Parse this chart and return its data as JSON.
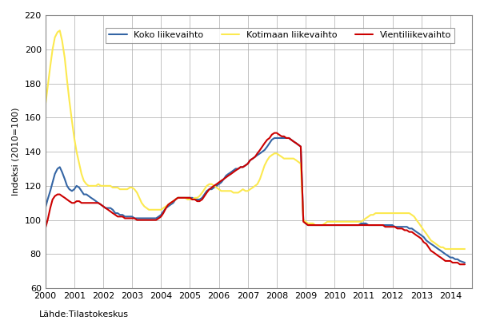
{
  "title": "",
  "ylabel": "Indeksi (2010=100)",
  "source_text": "Lähde:Tilastokeskus",
  "ylim": [
    60,
    220
  ],
  "yticks": [
    60,
    80,
    100,
    120,
    140,
    160,
    180,
    200,
    220
  ],
  "xlim_start": 2000.0,
  "xlim_end": 2014.75,
  "xtick_labels": [
    "2000",
    "2001",
    "2002",
    "2003",
    "2004",
    "2005",
    "2006",
    "2007",
    "2008",
    "2009",
    "2010",
    "2011",
    "2012",
    "2013",
    "2014"
  ],
  "line_koko": {
    "color": "#3465a4",
    "label": "Koko liikevaihto",
    "linewidth": 1.5
  },
  "line_kotimaan": {
    "color": "#fce94f",
    "label": "Kotimaan liikevaihto",
    "linewidth": 1.5
  },
  "line_vienti": {
    "color": "#cc0000",
    "label": "Vientiliikevaihto",
    "linewidth": 1.5
  },
  "koko_x": [
    2000.0,
    2000.08,
    2000.17,
    2000.25,
    2000.33,
    2000.42,
    2000.5,
    2000.58,
    2000.67,
    2000.75,
    2000.83,
    2000.92,
    2001.0,
    2001.08,
    2001.17,
    2001.25,
    2001.33,
    2001.42,
    2001.5,
    2001.58,
    2001.67,
    2001.75,
    2001.83,
    2001.92,
    2002.0,
    2002.08,
    2002.17,
    2002.25,
    2002.33,
    2002.42,
    2002.5,
    2002.58,
    2002.67,
    2002.75,
    2002.83,
    2002.92,
    2003.0,
    2003.08,
    2003.17,
    2003.25,
    2003.33,
    2003.42,
    2003.5,
    2003.58,
    2003.67,
    2003.75,
    2003.83,
    2003.92,
    2004.0,
    2004.08,
    2004.17,
    2004.25,
    2004.33,
    2004.42,
    2004.5,
    2004.58,
    2004.67,
    2004.75,
    2004.83,
    2004.92,
    2005.0,
    2005.08,
    2005.17,
    2005.25,
    2005.33,
    2005.42,
    2005.5,
    2005.58,
    2005.67,
    2005.75,
    2005.83,
    2005.92,
    2006.0,
    2006.08,
    2006.17,
    2006.25,
    2006.33,
    2006.42,
    2006.5,
    2006.58,
    2006.67,
    2006.75,
    2006.83,
    2006.92,
    2007.0,
    2007.08,
    2007.17,
    2007.25,
    2007.33,
    2007.42,
    2007.5,
    2007.58,
    2007.67,
    2007.75,
    2007.83,
    2007.92,
    2008.0,
    2008.08,
    2008.17,
    2008.25,
    2008.33,
    2008.42,
    2008.5,
    2008.58,
    2008.67,
    2008.75,
    2008.83,
    2008.92,
    2009.0,
    2009.08,
    2009.17,
    2009.25,
    2009.33,
    2009.42,
    2009.5,
    2009.58,
    2009.67,
    2009.75,
    2009.83,
    2009.92,
    2010.0,
    2010.08,
    2010.17,
    2010.25,
    2010.33,
    2010.42,
    2010.5,
    2010.58,
    2010.67,
    2010.75,
    2010.83,
    2010.92,
    2011.0,
    2011.08,
    2011.17,
    2011.25,
    2011.33,
    2011.42,
    2011.5,
    2011.58,
    2011.67,
    2011.75,
    2011.83,
    2011.92,
    2012.0,
    2012.08,
    2012.17,
    2012.25,
    2012.33,
    2012.42,
    2012.5,
    2012.58,
    2012.67,
    2012.75,
    2012.83,
    2012.92,
    2013.0,
    2013.08,
    2013.17,
    2013.25,
    2013.33,
    2013.42,
    2013.5,
    2013.58,
    2013.67,
    2013.75,
    2013.83,
    2013.92,
    2014.0,
    2014.08,
    2014.17,
    2014.25,
    2014.33,
    2014.5
  ],
  "koko_y": [
    107,
    112,
    117,
    122,
    127,
    130,
    131,
    128,
    124,
    120,
    118,
    117,
    118,
    120,
    119,
    117,
    115,
    115,
    114,
    113,
    112,
    111,
    110,
    109,
    108,
    107,
    107,
    107,
    106,
    104,
    104,
    103,
    103,
    102,
    102,
    102,
    102,
    101,
    101,
    101,
    101,
    101,
    101,
    101,
    101,
    101,
    101,
    102,
    103,
    105,
    107,
    108,
    109,
    110,
    112,
    113,
    113,
    113,
    113,
    113,
    113,
    113,
    112,
    112,
    112,
    113,
    115,
    117,
    118,
    118,
    119,
    120,
    121,
    122,
    124,
    126,
    127,
    128,
    129,
    130,
    130,
    131,
    131,
    132,
    133,
    135,
    136,
    137,
    138,
    139,
    140,
    141,
    143,
    145,
    147,
    148,
    148,
    148,
    148,
    148,
    148,
    148,
    147,
    146,
    145,
    144,
    143,
    100,
    98,
    97,
    97,
    97,
    97,
    97,
    97,
    97,
    97,
    97,
    97,
    97,
    97,
    97,
    97,
    97,
    97,
    97,
    97,
    97,
    97,
    97,
    97,
    98,
    98,
    98,
    97,
    97,
    97,
    97,
    97,
    97,
    97,
    97,
    97,
    97,
    97,
    96,
    96,
    96,
    96,
    96,
    96,
    95,
    95,
    94,
    93,
    92,
    91,
    90,
    88,
    87,
    86,
    85,
    84,
    83,
    82,
    81,
    80,
    79,
    78,
    78,
    77,
    77,
    76,
    75
  ],
  "kotimaan_x": [
    2000.0,
    2000.08,
    2000.17,
    2000.25,
    2000.33,
    2000.42,
    2000.5,
    2000.58,
    2000.67,
    2000.75,
    2000.83,
    2000.92,
    2001.0,
    2001.08,
    2001.17,
    2001.25,
    2001.33,
    2001.42,
    2001.5,
    2001.58,
    2001.67,
    2001.75,
    2001.83,
    2001.92,
    2002.0,
    2002.08,
    2002.17,
    2002.25,
    2002.33,
    2002.42,
    2002.5,
    2002.58,
    2002.67,
    2002.75,
    2002.83,
    2002.92,
    2003.0,
    2003.08,
    2003.17,
    2003.25,
    2003.33,
    2003.42,
    2003.5,
    2003.58,
    2003.67,
    2003.75,
    2003.83,
    2003.92,
    2004.0,
    2004.08,
    2004.17,
    2004.25,
    2004.33,
    2004.42,
    2004.5,
    2004.58,
    2004.67,
    2004.75,
    2004.83,
    2004.92,
    2005.0,
    2005.08,
    2005.17,
    2005.25,
    2005.33,
    2005.42,
    2005.5,
    2005.58,
    2005.67,
    2005.75,
    2005.83,
    2005.92,
    2006.0,
    2006.08,
    2006.17,
    2006.25,
    2006.33,
    2006.42,
    2006.5,
    2006.58,
    2006.67,
    2006.75,
    2006.83,
    2006.92,
    2007.0,
    2007.08,
    2007.17,
    2007.25,
    2007.33,
    2007.42,
    2007.5,
    2007.58,
    2007.67,
    2007.75,
    2007.83,
    2007.92,
    2008.0,
    2008.08,
    2008.17,
    2008.25,
    2008.33,
    2008.42,
    2008.5,
    2008.58,
    2008.67,
    2008.75,
    2008.83,
    2008.92,
    2009.0,
    2009.08,
    2009.17,
    2009.25,
    2009.33,
    2009.42,
    2009.5,
    2009.58,
    2009.67,
    2009.75,
    2009.83,
    2009.92,
    2010.0,
    2010.08,
    2010.17,
    2010.25,
    2010.33,
    2010.42,
    2010.5,
    2010.58,
    2010.67,
    2010.75,
    2010.83,
    2010.92,
    2011.0,
    2011.08,
    2011.17,
    2011.25,
    2011.33,
    2011.42,
    2011.5,
    2011.58,
    2011.67,
    2011.75,
    2011.83,
    2011.92,
    2012.0,
    2012.08,
    2012.17,
    2012.25,
    2012.33,
    2012.42,
    2012.5,
    2012.58,
    2012.67,
    2012.75,
    2012.83,
    2012.92,
    2013.0,
    2013.08,
    2013.17,
    2013.25,
    2013.33,
    2013.42,
    2013.5,
    2013.58,
    2013.67,
    2013.75,
    2013.83,
    2013.92,
    2014.0,
    2014.08,
    2014.17,
    2014.25,
    2014.33,
    2014.5
  ],
  "kotimaan_y": [
    167,
    178,
    190,
    200,
    207,
    210,
    211,
    205,
    195,
    182,
    170,
    158,
    148,
    140,
    133,
    127,
    123,
    121,
    120,
    120,
    120,
    120,
    121,
    120,
    120,
    120,
    120,
    120,
    119,
    119,
    119,
    118,
    118,
    118,
    118,
    119,
    119,
    118,
    116,
    113,
    110,
    108,
    107,
    106,
    106,
    106,
    106,
    106,
    106,
    107,
    108,
    109,
    110,
    111,
    112,
    113,
    113,
    113,
    113,
    112,
    112,
    112,
    113,
    113,
    114,
    116,
    118,
    120,
    121,
    121,
    120,
    119,
    118,
    117,
    117,
    117,
    117,
    117,
    116,
    116,
    116,
    117,
    118,
    117,
    117,
    118,
    119,
    120,
    121,
    124,
    128,
    132,
    135,
    137,
    138,
    139,
    139,
    138,
    137,
    136,
    136,
    136,
    136,
    136,
    135,
    134,
    133,
    100,
    99,
    98,
    98,
    98,
    97,
    97,
    97,
    97,
    98,
    99,
    99,
    99,
    99,
    99,
    99,
    99,
    99,
    99,
    99,
    99,
    99,
    99,
    99,
    99,
    100,
    101,
    102,
    103,
    103,
    104,
    104,
    104,
    104,
    104,
    104,
    104,
    104,
    104,
    104,
    104,
    104,
    104,
    104,
    104,
    103,
    102,
    100,
    98,
    96,
    94,
    92,
    90,
    88,
    87,
    86,
    85,
    84,
    84,
    83,
    83,
    83,
    83,
    83,
    83,
    83,
    83
  ],
  "vienti_x": [
    2000.0,
    2000.08,
    2000.17,
    2000.25,
    2000.33,
    2000.42,
    2000.5,
    2000.58,
    2000.67,
    2000.75,
    2000.83,
    2000.92,
    2001.0,
    2001.08,
    2001.17,
    2001.25,
    2001.33,
    2001.42,
    2001.5,
    2001.58,
    2001.67,
    2001.75,
    2001.83,
    2001.92,
    2002.0,
    2002.08,
    2002.17,
    2002.25,
    2002.33,
    2002.42,
    2002.5,
    2002.58,
    2002.67,
    2002.75,
    2002.83,
    2002.92,
    2003.0,
    2003.08,
    2003.17,
    2003.25,
    2003.33,
    2003.42,
    2003.5,
    2003.58,
    2003.67,
    2003.75,
    2003.83,
    2003.92,
    2004.0,
    2004.08,
    2004.17,
    2004.25,
    2004.33,
    2004.42,
    2004.5,
    2004.58,
    2004.67,
    2004.75,
    2004.83,
    2004.92,
    2005.0,
    2005.08,
    2005.17,
    2005.25,
    2005.33,
    2005.42,
    2005.5,
    2005.58,
    2005.67,
    2005.75,
    2005.83,
    2005.92,
    2006.0,
    2006.08,
    2006.17,
    2006.25,
    2006.33,
    2006.42,
    2006.5,
    2006.58,
    2006.67,
    2006.75,
    2006.83,
    2006.92,
    2007.0,
    2007.08,
    2007.17,
    2007.25,
    2007.33,
    2007.42,
    2007.5,
    2007.58,
    2007.67,
    2007.75,
    2007.83,
    2007.92,
    2008.0,
    2008.08,
    2008.17,
    2008.25,
    2008.33,
    2008.42,
    2008.5,
    2008.58,
    2008.67,
    2008.75,
    2008.83,
    2008.92,
    2009.0,
    2009.08,
    2009.17,
    2009.25,
    2009.33,
    2009.42,
    2009.5,
    2009.58,
    2009.67,
    2009.75,
    2009.83,
    2009.92,
    2010.0,
    2010.08,
    2010.17,
    2010.25,
    2010.33,
    2010.42,
    2010.5,
    2010.58,
    2010.67,
    2010.75,
    2010.83,
    2010.92,
    2011.0,
    2011.08,
    2011.17,
    2011.25,
    2011.33,
    2011.42,
    2011.5,
    2011.58,
    2011.67,
    2011.75,
    2011.83,
    2011.92,
    2012.0,
    2012.08,
    2012.17,
    2012.25,
    2012.33,
    2012.42,
    2012.5,
    2012.58,
    2012.67,
    2012.75,
    2012.83,
    2012.92,
    2013.0,
    2013.08,
    2013.17,
    2013.25,
    2013.33,
    2013.42,
    2013.5,
    2013.58,
    2013.67,
    2013.75,
    2013.83,
    2013.92,
    2014.0,
    2014.08,
    2014.17,
    2014.25,
    2014.33,
    2014.5
  ],
  "vienti_y": [
    95,
    100,
    107,
    112,
    114,
    115,
    115,
    114,
    113,
    112,
    111,
    110,
    110,
    111,
    111,
    110,
    110,
    110,
    110,
    110,
    110,
    110,
    110,
    109,
    108,
    107,
    106,
    105,
    104,
    103,
    102,
    102,
    102,
    101,
    101,
    101,
    101,
    101,
    100,
    100,
    100,
    100,
    100,
    100,
    100,
    100,
    100,
    101,
    102,
    104,
    107,
    109,
    110,
    111,
    112,
    113,
    113,
    113,
    113,
    113,
    113,
    112,
    112,
    111,
    111,
    112,
    114,
    116,
    118,
    119,
    120,
    121,
    122,
    123,
    124,
    125,
    126,
    127,
    128,
    129,
    130,
    131,
    131,
    132,
    133,
    135,
    136,
    137,
    139,
    141,
    143,
    145,
    147,
    148,
    150,
    151,
    151,
    150,
    149,
    149,
    148,
    148,
    147,
    146,
    145,
    144,
    143,
    99,
    98,
    97,
    97,
    97,
    97,
    97,
    97,
    97,
    97,
    97,
    97,
    97,
    97,
    97,
    97,
    97,
    97,
    97,
    97,
    97,
    97,
    97,
    97,
    97,
    97,
    97,
    97,
    97,
    97,
    97,
    97,
    97,
    97,
    96,
    96,
    96,
    96,
    96,
    95,
    95,
    95,
    94,
    94,
    93,
    93,
    92,
    91,
    90,
    89,
    87,
    86,
    84,
    82,
    81,
    80,
    79,
    78,
    77,
    76,
    76,
    76,
    75,
    75,
    75,
    74,
    74
  ]
}
